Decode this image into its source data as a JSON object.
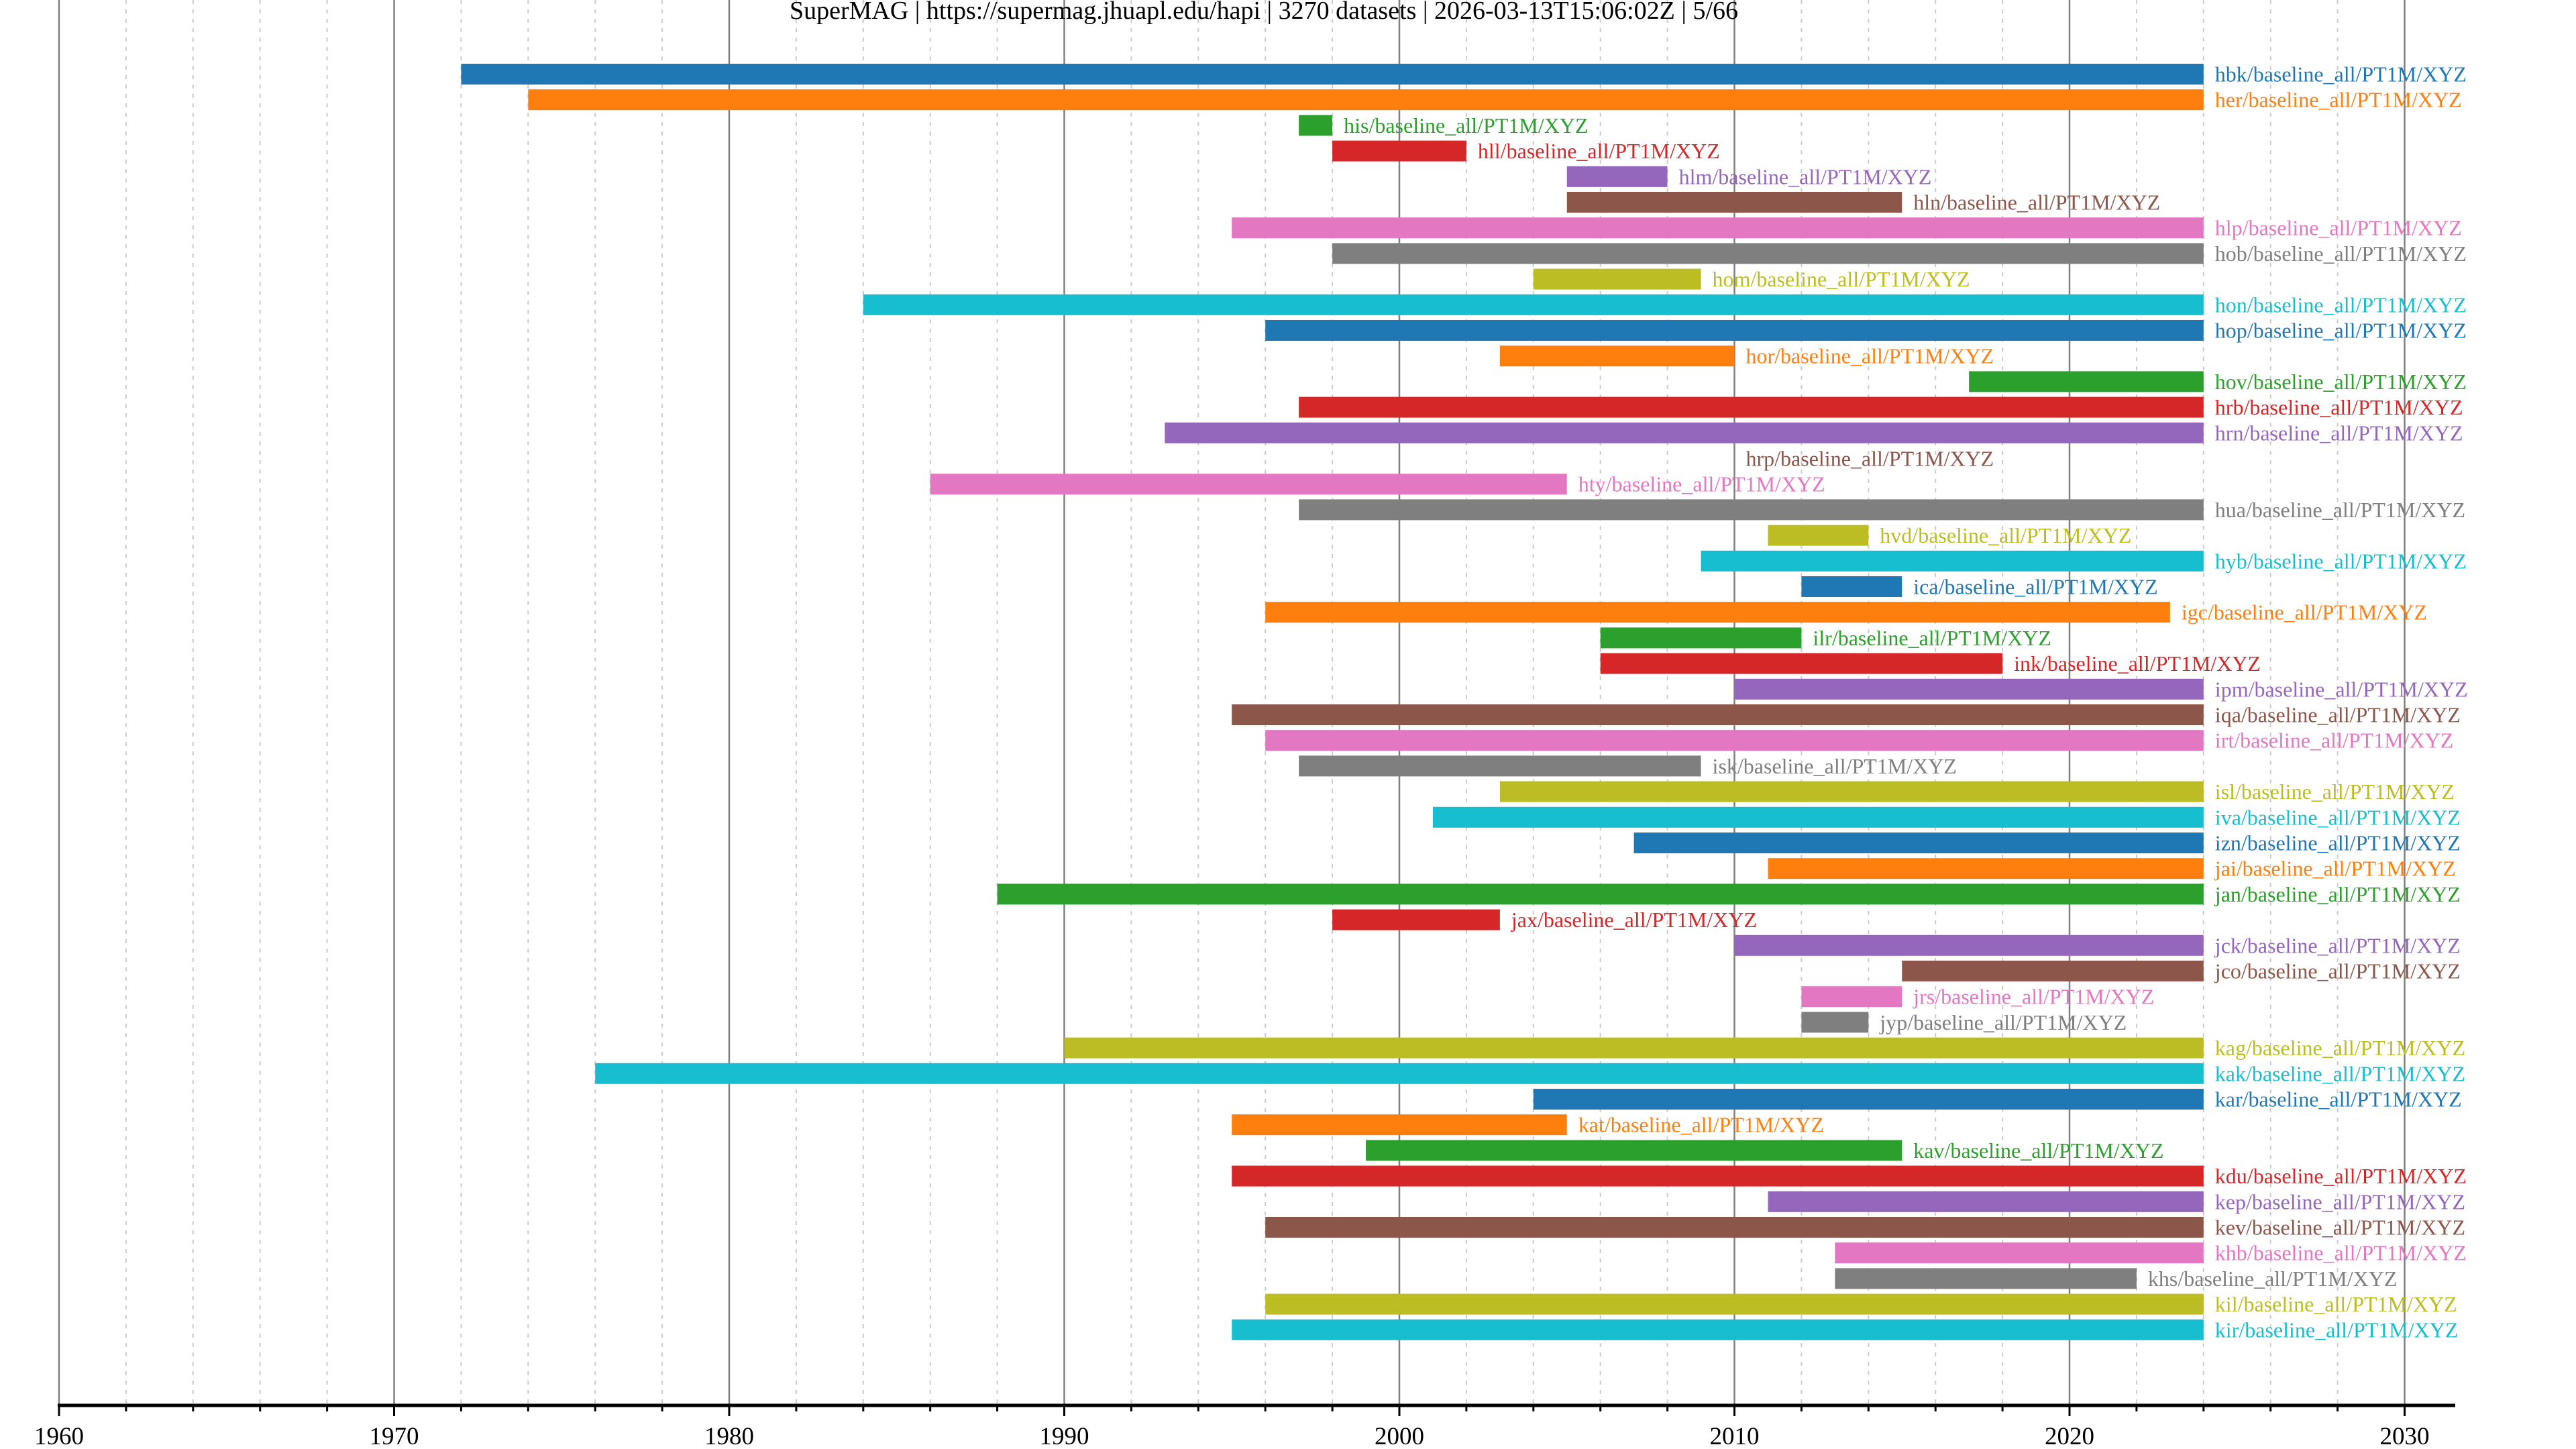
{
  "chart_data": {
    "type": "bar",
    "subtype": "horizontal-timeline",
    "title": "SuperMAG | https://supermag.jhuapl.edu/hapi | 3270 datasets | 2026-03-13T15:06:02Z | 5/66",
    "xlabel": "",
    "ylabel": "",
    "xlim": [
      1960,
      2031.5
    ],
    "x_major_ticks": [
      1960,
      1970,
      1980,
      1990,
      2000,
      2010,
      2020,
      2030
    ],
    "x_tick_labels": [
      "1960",
      "1970",
      "1980",
      "1990",
      "2000",
      "2010",
      "2020",
      "2030"
    ],
    "x_minor_tick_step": 2,
    "grid": true,
    "legend": "none",
    "palette": [
      "#1f77b4",
      "#ff7f0e",
      "#2ca02c",
      "#d62728",
      "#9467bd",
      "#8c564b",
      "#e377c2",
      "#7f7f7f",
      "#bcbd22",
      "#17becf"
    ],
    "series": [
      {
        "name": "hbk/baseline_all/PT1M/XYZ",
        "start": 1972,
        "end": 2024
      },
      {
        "name": "her/baseline_all/PT1M/XYZ",
        "start": 1974,
        "end": 2024
      },
      {
        "name": "his/baseline_all/PT1M/XYZ",
        "start": 1997,
        "end": 1998
      },
      {
        "name": "hll/baseline_all/PT1M/XYZ",
        "start": 1998,
        "end": 2002
      },
      {
        "name": "hlm/baseline_all/PT1M/XYZ",
        "start": 2005,
        "end": 2008
      },
      {
        "name": "hln/baseline_all/PT1M/XYZ",
        "start": 2005,
        "end": 2015
      },
      {
        "name": "hlp/baseline_all/PT1M/XYZ",
        "start": 1995,
        "end": 2024
      },
      {
        "name": "hob/baseline_all/PT1M/XYZ",
        "start": 1998,
        "end": 2024
      },
      {
        "name": "hom/baseline_all/PT1M/XYZ",
        "start": 2004,
        "end": 2009
      },
      {
        "name": "hon/baseline_all/PT1M/XYZ",
        "start": 1984,
        "end": 2024
      },
      {
        "name": "hop/baseline_all/PT1M/XYZ",
        "start": 1996,
        "end": 2024
      },
      {
        "name": "hor/baseline_all/PT1M/XYZ",
        "start": 2003,
        "end": 2010
      },
      {
        "name": "hov/baseline_all/PT1M/XYZ",
        "start": 2017,
        "end": 2024
      },
      {
        "name": "hrb/baseline_all/PT1M/XYZ",
        "start": 1997,
        "end": 2024
      },
      {
        "name": "hrn/baseline_all/PT1M/XYZ",
        "start": 1993,
        "end": 2024
      },
      {
        "name": "hrp/baseline_all/PT1M/XYZ",
        "start": 2010,
        "end": 2010
      },
      {
        "name": "hty/baseline_all/PT1M/XYZ",
        "start": 1986,
        "end": 2005
      },
      {
        "name": "hua/baseline_all/PT1M/XYZ",
        "start": 1997,
        "end": 2024
      },
      {
        "name": "hvd/baseline_all/PT1M/XYZ",
        "start": 2011,
        "end": 2014
      },
      {
        "name": "hyb/baseline_all/PT1M/XYZ",
        "start": 2009,
        "end": 2024
      },
      {
        "name": "ica/baseline_all/PT1M/XYZ",
        "start": 2012,
        "end": 2015
      },
      {
        "name": "igc/baseline_all/PT1M/XYZ",
        "start": 1996,
        "end": 2023
      },
      {
        "name": "ilr/baseline_all/PT1M/XYZ",
        "start": 2006,
        "end": 2012
      },
      {
        "name": "ink/baseline_all/PT1M/XYZ",
        "start": 2006,
        "end": 2018
      },
      {
        "name": "ipm/baseline_all/PT1M/XYZ",
        "start": 2010,
        "end": 2024
      },
      {
        "name": "iqa/baseline_all/PT1M/XYZ",
        "start": 1995,
        "end": 2024
      },
      {
        "name": "irt/baseline_all/PT1M/XYZ",
        "start": 1996,
        "end": 2024
      },
      {
        "name": "isk/baseline_all/PT1M/XYZ",
        "start": 1997,
        "end": 2009
      },
      {
        "name": "isl/baseline_all/PT1M/XYZ",
        "start": 2003,
        "end": 2024
      },
      {
        "name": "iva/baseline_all/PT1M/XYZ",
        "start": 2001,
        "end": 2024
      },
      {
        "name": "izn/baseline_all/PT1M/XYZ",
        "start": 2007,
        "end": 2024
      },
      {
        "name": "jai/baseline_all/PT1M/XYZ",
        "start": 2011,
        "end": 2024
      },
      {
        "name": "jan/baseline_all/PT1M/XYZ",
        "start": 1988,
        "end": 2024
      },
      {
        "name": "jax/baseline_all/PT1M/XYZ",
        "start": 1998,
        "end": 2003
      },
      {
        "name": "jck/baseline_all/PT1M/XYZ",
        "start": 2010,
        "end": 2024
      },
      {
        "name": "jco/baseline_all/PT1M/XYZ",
        "start": 2015,
        "end": 2024
      },
      {
        "name": "jrs/baseline_all/PT1M/XYZ",
        "start": 2012,
        "end": 2015
      },
      {
        "name": "jyp/baseline_all/PT1M/XYZ",
        "start": 2012,
        "end": 2014
      },
      {
        "name": "kag/baseline_all/PT1M/XYZ",
        "start": 1990,
        "end": 2024
      },
      {
        "name": "kak/baseline_all/PT1M/XYZ",
        "start": 1976,
        "end": 2024
      },
      {
        "name": "kar/baseline_all/PT1M/XYZ",
        "start": 2004,
        "end": 2024
      },
      {
        "name": "kat/baseline_all/PT1M/XYZ",
        "start": 1995,
        "end": 2005
      },
      {
        "name": "kav/baseline_all/PT1M/XYZ",
        "start": 1999,
        "end": 2015
      },
      {
        "name": "kdu/baseline_all/PT1M/XYZ",
        "start": 1995,
        "end": 2024
      },
      {
        "name": "kep/baseline_all/PT1M/XYZ",
        "start": 2011,
        "end": 2024
      },
      {
        "name": "kev/baseline_all/PT1M/XYZ",
        "start": 1996,
        "end": 2024
      },
      {
        "name": "khb/baseline_all/PT1M/XYZ",
        "start": 2013,
        "end": 2024
      },
      {
        "name": "khs/baseline_all/PT1M/XYZ",
        "start": 2013,
        "end": 2022
      },
      {
        "name": "kil/baseline_all/PT1M/XYZ",
        "start": 1996,
        "end": 2024
      },
      {
        "name": "kir/baseline_all/PT1M/XYZ",
        "start": 1995,
        "end": 2024
      }
    ]
  }
}
